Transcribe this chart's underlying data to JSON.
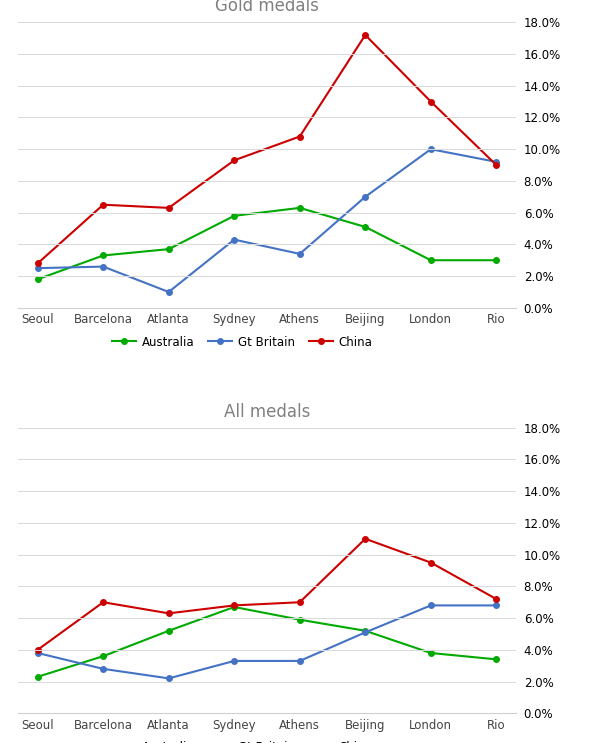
{
  "categories": [
    "Seoul",
    "Barcelona",
    "Atlanta",
    "Sydney",
    "Athens",
    "Beijing",
    "London",
    "Rio"
  ],
  "gold": {
    "Australia": [
      0.018,
      0.033,
      0.037,
      0.058,
      0.063,
      0.051,
      0.03,
      0.03
    ],
    "Gt Britain": [
      0.025,
      0.026,
      0.01,
      0.043,
      0.034,
      0.07,
      0.1,
      0.092
    ],
    "China": [
      0.028,
      0.065,
      0.063,
      0.093,
      0.108,
      0.172,
      0.13,
      0.09
    ]
  },
  "all": {
    "Australia": [
      0.023,
      0.036,
      0.052,
      0.067,
      0.059,
      0.052,
      0.038,
      0.034
    ],
    "Gt Britain": [
      0.038,
      0.028,
      0.022,
      0.033,
      0.033,
      0.051,
      0.068,
      0.068
    ],
    "China": [
      0.04,
      0.07,
      0.063,
      0.068,
      0.07,
      0.11,
      0.095,
      0.072
    ]
  },
  "colors": {
    "Australia": "#00aa00",
    "Gt Britain": "#4472c4",
    "China": "#cc0000"
  },
  "title_gold": "Gold medals",
  "title_all": "All medals",
  "ylim": [
    0.0,
    0.18
  ],
  "yticks": [
    0.0,
    0.02,
    0.04,
    0.06,
    0.08,
    0.1,
    0.12,
    0.14,
    0.16,
    0.18
  ],
  "background_color": "#ffffff",
  "grid_color": "#d9d9d9",
  "title_color": "#808080",
  "border_color": "#d0d0d0"
}
